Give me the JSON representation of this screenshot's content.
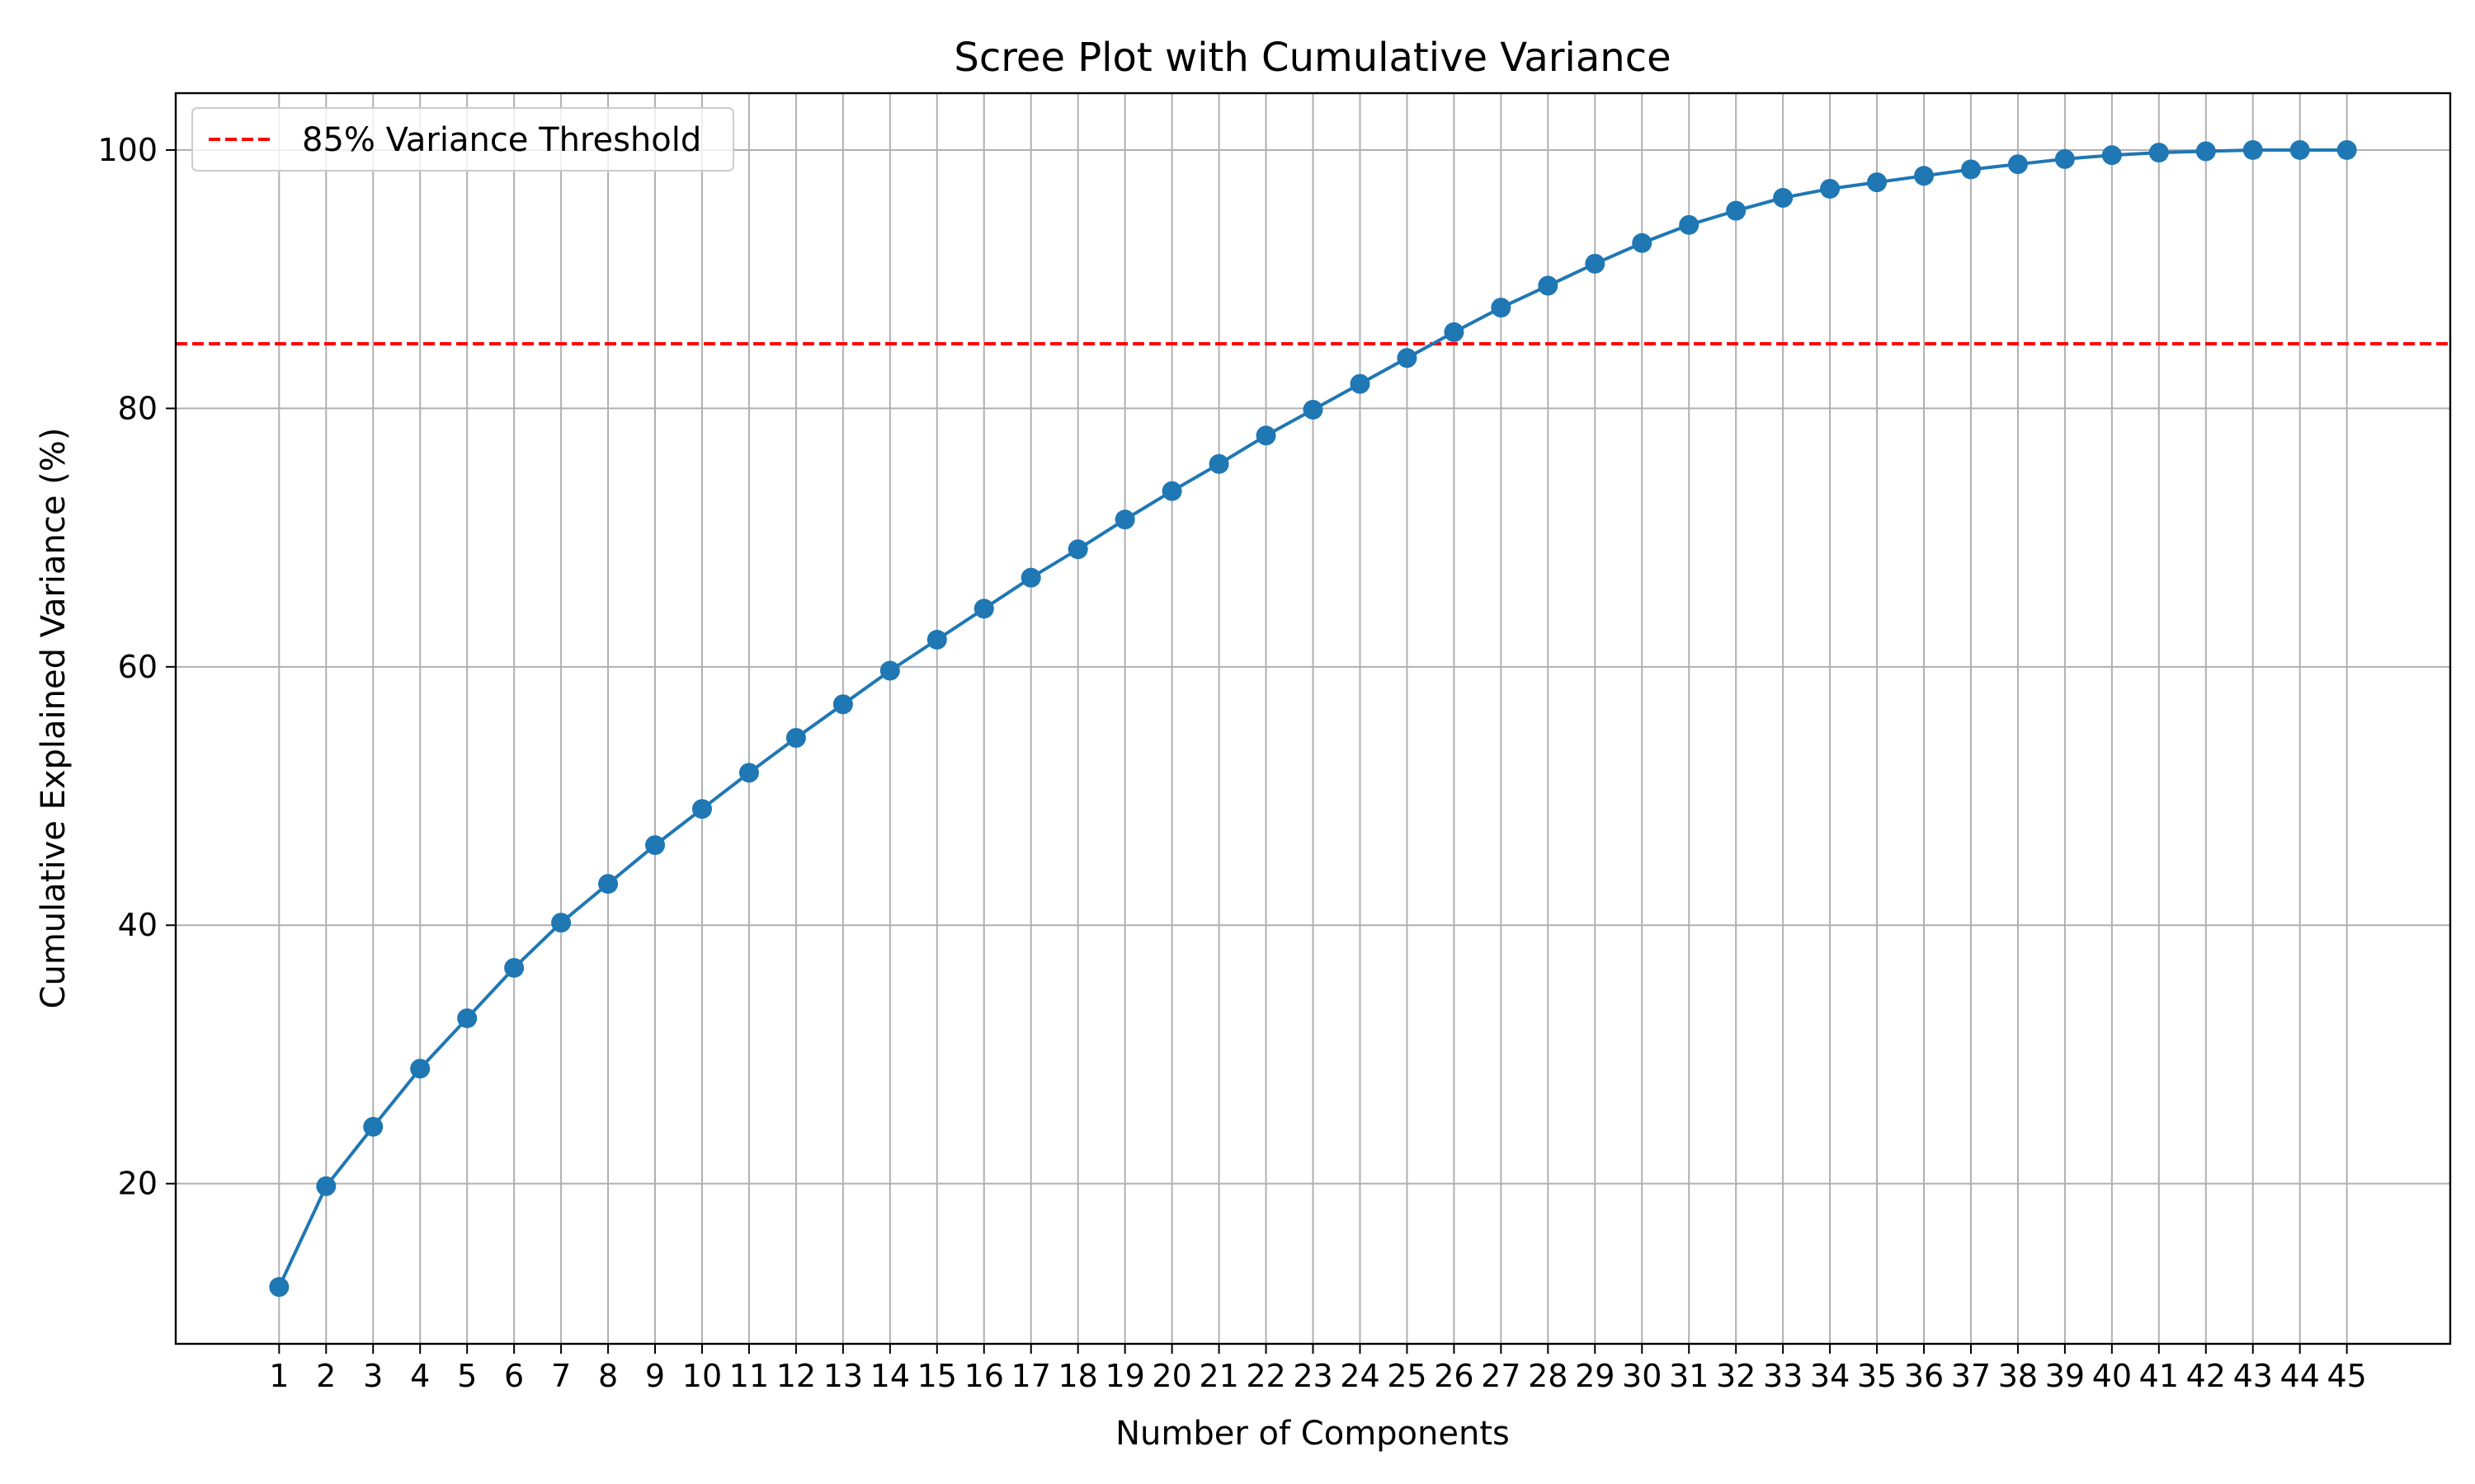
{
  "chart_data": {
    "type": "line",
    "title": "Scree Plot with Cumulative Variance",
    "xlabel": "Number of Components",
    "ylabel": "Cumulative Explained Variance (%)",
    "x": [
      1,
      2,
      3,
      4,
      5,
      6,
      7,
      8,
      9,
      10,
      11,
      12,
      13,
      14,
      15,
      16,
      17,
      18,
      19,
      20,
      21,
      22,
      23,
      24,
      25,
      26,
      27,
      28,
      29,
      30,
      31,
      32,
      33,
      34,
      35,
      36,
      37,
      38,
      39,
      40,
      41,
      42,
      43,
      44,
      45
    ],
    "series": [
      {
        "values": [
          12.0,
          19.8,
          24.4,
          28.9,
          32.8,
          36.7,
          40.2,
          43.2,
          46.2,
          49.0,
          51.8,
          54.5,
          57.1,
          59.7,
          62.1,
          64.5,
          66.9,
          69.1,
          71.4,
          73.6,
          75.7,
          77.9,
          79.9,
          81.9,
          83.9,
          85.9,
          87.8,
          89.5,
          91.2,
          92.8,
          94.2,
          95.3,
          96.3,
          97.0,
          97.5,
          98.0,
          98.5,
          98.9,
          99.3,
          99.6,
          99.8,
          99.9,
          100.0,
          100.0,
          100.0
        ],
        "color": "#1f77b4"
      }
    ],
    "threshold": {
      "value": 85,
      "label": "85% Variance Threshold",
      "color": "#ff0000",
      "style": "dashed"
    },
    "xticks": [
      "1",
      "2",
      "3",
      "4",
      "5",
      "6",
      "7",
      "8",
      "9",
      "10",
      "11",
      "12",
      "13",
      "14",
      "15",
      "16",
      "17",
      "18",
      "19",
      "20",
      "21",
      "22",
      "23",
      "24",
      "25",
      "26",
      "27",
      "28",
      "29",
      "30",
      "31",
      "32",
      "33",
      "34",
      "35",
      "36",
      "37",
      "38",
      "39",
      "40",
      "41",
      "42",
      "43",
      "44",
      "45"
    ],
    "yticks": [
      20,
      40,
      60,
      80,
      100
    ],
    "xlim": [
      -1.2,
      47.2
    ],
    "ylim": [
      7.6,
      104.4
    ],
    "grid": true,
    "legend_position": "top-left"
  }
}
